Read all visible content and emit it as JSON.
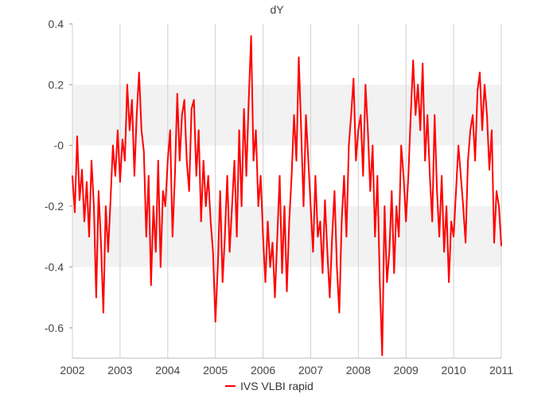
{
  "chart_data": {
    "type": "line",
    "title": "dY",
    "xlabel": "",
    "ylabel": "",
    "xlim": [
      2002,
      2011
    ],
    "ylim": [
      -0.7,
      0.4
    ],
    "x_ticks": [
      "2002",
      "2003",
      "2004",
      "2005",
      "2006",
      "2007",
      "2008",
      "2009",
      "2010",
      "2011"
    ],
    "y_ticks": [
      "0.4",
      "0.2",
      "-0",
      "-0.2",
      "-0.4",
      "-0.6"
    ],
    "y_tick_values": [
      0.4,
      0.2,
      0,
      -0.2,
      -0.4,
      -0.6
    ],
    "shaded_bands": [
      [
        0,
        0.2
      ],
      [
        -0.4,
        -0.2
      ]
    ],
    "grid": true,
    "legend_position": "bottom-center",
    "series": [
      {
        "name": "IVS VLBI rapid",
        "color": "#ff0000",
        "x": [
          2002.0,
          2002.05,
          2002.1,
          2002.15,
          2002.2,
          2002.25,
          2002.3,
          2002.35,
          2002.4,
          2002.45,
          2002.5,
          2002.55,
          2002.6,
          2002.65,
          2002.7,
          2002.75,
          2002.8,
          2002.85,
          2002.9,
          2002.95,
          2003.0,
          2003.05,
          2003.1,
          2003.15,
          2003.2,
          2003.25,
          2003.3,
          2003.35,
          2003.4,
          2003.45,
          2003.5,
          2003.55,
          2003.6,
          2003.65,
          2003.7,
          2003.75,
          2003.8,
          2003.85,
          2003.9,
          2003.95,
          2004.0,
          2004.05,
          2004.1,
          2004.15,
          2004.2,
          2004.25,
          2004.3,
          2004.35,
          2004.4,
          2004.45,
          2004.5,
          2004.55,
          2004.6,
          2004.65,
          2004.7,
          2004.75,
          2004.8,
          2004.85,
          2004.9,
          2004.95,
          2005.0,
          2005.05,
          2005.1,
          2005.15,
          2005.2,
          2005.25,
          2005.3,
          2005.35,
          2005.4,
          2005.45,
          2005.5,
          2005.55,
          2005.6,
          2005.65,
          2005.7,
          2005.75,
          2005.8,
          2005.85,
          2005.9,
          2005.95,
          2006.0,
          2006.05,
          2006.1,
          2006.15,
          2006.2,
          2006.25,
          2006.3,
          2006.35,
          2006.4,
          2006.45,
          2006.5,
          2006.55,
          2006.6,
          2006.65,
          2006.7,
          2006.75,
          2006.8,
          2006.85,
          2006.9,
          2006.95,
          2007.0,
          2007.05,
          2007.1,
          2007.15,
          2007.2,
          2007.25,
          2007.3,
          2007.35,
          2007.4,
          2007.45,
          2007.5,
          2007.55,
          2007.6,
          2007.65,
          2007.7,
          2007.75,
          2007.8,
          2007.85,
          2007.9,
          2007.95,
          2008.0,
          2008.05,
          2008.1,
          2008.15,
          2008.2,
          2008.25,
          2008.3,
          2008.35,
          2008.4,
          2008.45,
          2008.5,
          2008.55,
          2008.6,
          2008.65,
          2008.7,
          2008.75,
          2008.8,
          2008.85,
          2008.9,
          2008.95,
          2009.0,
          2009.05,
          2009.1,
          2009.15,
          2009.2,
          2009.25,
          2009.3,
          2009.35,
          2009.4,
          2009.45,
          2009.5,
          2009.55,
          2009.6,
          2009.65,
          2009.7,
          2009.75,
          2009.8,
          2009.85,
          2009.9,
          2009.95,
          2010.0,
          2010.05,
          2010.1,
          2010.15,
          2010.2,
          2010.25,
          2010.3,
          2010.35,
          2010.4,
          2010.45,
          2010.5,
          2010.55,
          2010.6,
          2010.65,
          2010.7,
          2010.75,
          2010.8,
          2010.85,
          2010.9,
          2010.95,
          2011.0
        ],
        "y": [
          -0.1,
          -0.22,
          0.03,
          -0.18,
          -0.08,
          -0.25,
          -0.12,
          -0.3,
          -0.05,
          -0.2,
          -0.5,
          -0.15,
          -0.32,
          -0.55,
          -0.2,
          -0.35,
          -0.18,
          0.0,
          -0.1,
          0.05,
          -0.12,
          0.02,
          -0.05,
          0.2,
          0.05,
          0.15,
          -0.1,
          0.1,
          0.24,
          0.05,
          -0.02,
          -0.3,
          -0.1,
          -0.46,
          -0.2,
          -0.35,
          -0.05,
          -0.4,
          -0.15,
          -0.2,
          -0.05,
          0.05,
          -0.3,
          -0.1,
          0.17,
          -0.05,
          0.1,
          0.15,
          -0.05,
          -0.15,
          0.12,
          0.15,
          -0.1,
          0.05,
          -0.25,
          -0.05,
          -0.2,
          -0.1,
          -0.25,
          -0.35,
          -0.58,
          -0.4,
          -0.15,
          -0.45,
          -0.3,
          -0.1,
          -0.35,
          -0.2,
          -0.05,
          -0.3,
          0.05,
          -0.2,
          0.12,
          -0.1,
          0.15,
          0.36,
          -0.05,
          0.05,
          -0.2,
          -0.1,
          -0.3,
          -0.45,
          -0.25,
          -0.4,
          -0.32,
          -0.5,
          -0.3,
          -0.1,
          -0.42,
          -0.2,
          -0.48,
          -0.25,
          -0.1,
          0.1,
          -0.05,
          0.29,
          0.05,
          -0.2,
          0.1,
          -0.05,
          -0.2,
          -0.35,
          -0.1,
          -0.3,
          -0.25,
          -0.42,
          -0.18,
          -0.35,
          -0.5,
          -0.3,
          -0.15,
          -0.4,
          -0.55,
          -0.25,
          -0.1,
          -0.3,
          0.0,
          0.1,
          0.22,
          -0.05,
          0.05,
          0.1,
          -0.1,
          0.2,
          0.05,
          -0.15,
          0.0,
          -0.3,
          -0.1,
          -0.45,
          -0.69,
          -0.2,
          -0.45,
          -0.35,
          -0.15,
          -0.42,
          -0.2,
          -0.3,
          0.0,
          -0.1,
          -0.25,
          -0.1,
          0.1,
          0.28,
          0.1,
          0.2,
          0.05,
          0.27,
          -0.05,
          0.1,
          -0.1,
          -0.25,
          0.1,
          -0.15,
          -0.3,
          -0.1,
          -0.35,
          -0.2,
          -0.45,
          -0.25,
          -0.3,
          -0.15,
          0.0,
          -0.1,
          -0.2,
          -0.32,
          -0.05,
          0.05,
          0.1,
          -0.05,
          0.18,
          0.24,
          0.05,
          0.2,
          0.1,
          -0.08,
          0.05,
          -0.32,
          -0.15,
          -0.2,
          -0.33
        ]
      }
    ]
  }
}
